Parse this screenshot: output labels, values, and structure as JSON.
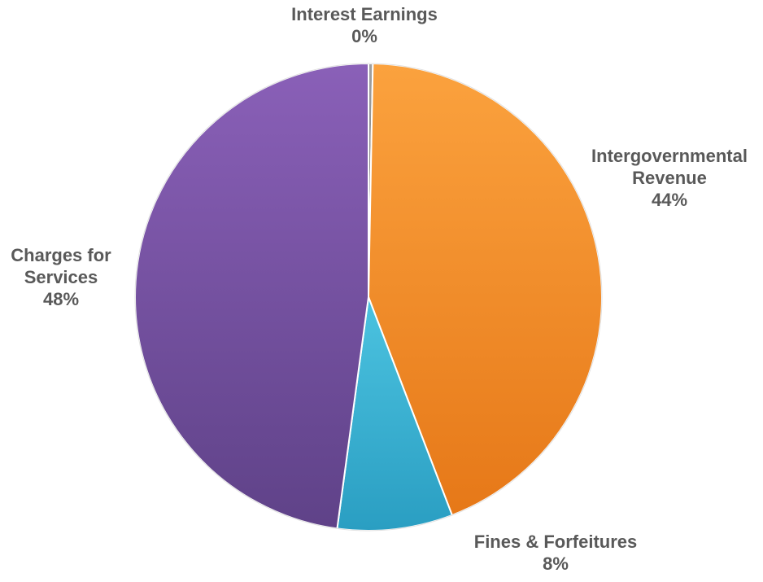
{
  "chart_data": {
    "type": "pie",
    "title": "",
    "slices": [
      {
        "label_lines": [
          "Interest Earnings"
        ],
        "value": 0.3,
        "percent_label": "0%",
        "color": "#8c8c8c"
      },
      {
        "label_lines": [
          "Intergovernmental",
          "Revenue"
        ],
        "value": 44,
        "percent_label": "44%",
        "color": "#f68e25"
      },
      {
        "label_lines": [
          "Fines & Forfeitures"
        ],
        "value": 8,
        "percent_label": "8%",
        "color": "#38b0d0"
      },
      {
        "label_lines": [
          "Charges for",
          "Services"
        ],
        "value": 48,
        "percent_label": "48%",
        "color": "#7a52a0"
      }
    ],
    "start_angle": "12 o'clock",
    "direction": "clockwise",
    "legend": "none"
  }
}
